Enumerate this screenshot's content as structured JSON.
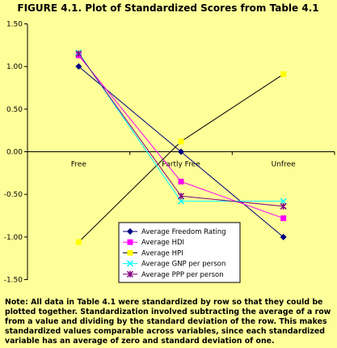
{
  "chart_data": {
    "type": "line",
    "title": "FIGURE 4.1. Plot of Standardized Scores from Table 4.1",
    "categories": [
      "Free",
      "Partly Free",
      "Unfree"
    ],
    "ylim": [
      -1.5,
      1.5
    ],
    "yticks": [
      "1.50",
      "1.00",
      "0.50",
      "0.00",
      "-0.50",
      "-1.00",
      "-1.50"
    ],
    "grid": false,
    "legend_position": "bottom-center",
    "series": [
      {
        "name": "Average Freedom Rating",
        "values": [
          1.0,
          0.0,
          -1.0
        ],
        "color": "#000080",
        "marker": "diamond"
      },
      {
        "name": "Average HDI",
        "values": [
          1.13,
          -0.35,
          -0.78
        ],
        "color": "#ff00ff",
        "marker": "square"
      },
      {
        "name": "Average HPI",
        "values": [
          -1.06,
          0.12,
          0.91
        ],
        "color": "#ffff00",
        "marker": "square"
      },
      {
        "name": "Average GNP per person",
        "values": [
          1.16,
          -0.58,
          -0.58
        ],
        "color": "#00ffff",
        "marker": "x"
      },
      {
        "name": "Average PPP per person",
        "values": [
          1.15,
          -0.52,
          -0.64
        ],
        "color": "#800080",
        "marker": "star"
      }
    ]
  },
  "note": "Note: All data in Table 4.1 were standardized by row so that they could be plotted together. Standardization involved subtracting the average of a row from a value and dividing by the standard deviation of the row. This makes standardized values comparable across variables, since each standardized variable has an average of zero and standard deviation of one."
}
